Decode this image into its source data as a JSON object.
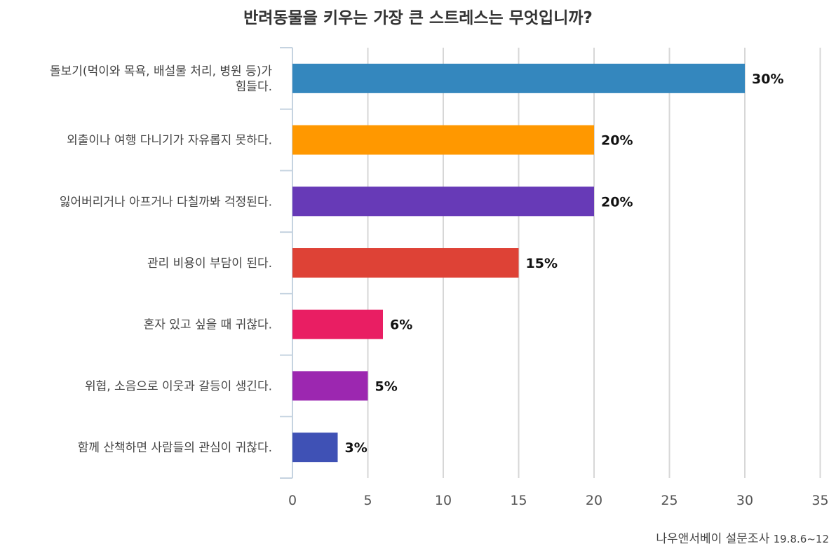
{
  "chart_data": {
    "type": "bar",
    "orientation": "horizontal",
    "title": "반려동물을 키우는 가장 큰 스트레스는 무엇입니까?",
    "categories": [
      [
        "돌보기(먹이와 목욕, 배설물 처리, 병원 등)가",
        "힘들다."
      ],
      [
        "외출이나 여행 다니기가 자유롭지 못하다."
      ],
      [
        "잃어버리거나 아프거나 다칠까봐 걱정된다."
      ],
      [
        "관리 비용이 부담이 된다."
      ],
      [
        "혼자 있고 싶을 때 귀찮다."
      ],
      [
        "위협, 소음으로 이웃과 갈등이 생긴다."
      ],
      [
        "함께 산책하면 사람들의 관심이 귀찮다."
      ]
    ],
    "values": [
      30,
      20,
      20,
      15,
      6,
      5,
      3
    ],
    "data_labels": [
      "30%",
      "20%",
      "20%",
      "15%",
      "6%",
      "5%",
      "3%"
    ],
    "colors": [
      "#3487be",
      "#ff9800",
      "#673ab7",
      "#de4236",
      "#e91e63",
      "#9c27b0",
      "#3f51b5"
    ],
    "xlim": [
      0,
      35
    ],
    "xticks": [
      0,
      5,
      10,
      15,
      20,
      25,
      30,
      35
    ],
    "grid": "vertical",
    "legend": "none"
  },
  "source": {
    "label": "나우앤서베이 설문조사",
    "date": "19.8.6~12"
  }
}
